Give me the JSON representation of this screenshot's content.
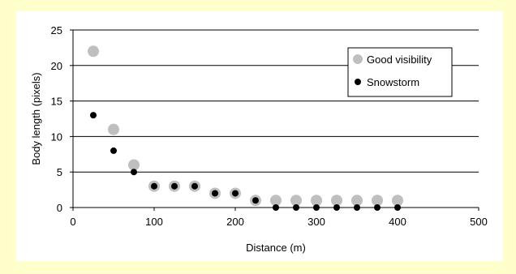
{
  "chart_data": {
    "type": "scatter",
    "xlabel": "Distance (m)",
    "ylabel": "Body length (pixels)",
    "xlim": [
      0,
      500
    ],
    "ylim": [
      0,
      25
    ],
    "xticks": [
      0,
      100,
      200,
      300,
      400,
      500
    ],
    "yticks": [
      0,
      5,
      10,
      15,
      20,
      25
    ],
    "grid": "horizontal",
    "legend_position": "top-right",
    "series": [
      {
        "name": "Good visibility",
        "color": "#bfbfbf",
        "marker": "large-circle",
        "points": [
          [
            25,
            22
          ],
          [
            50,
            11
          ],
          [
            75,
            6
          ],
          [
            100,
            3
          ],
          [
            125,
            3
          ],
          [
            150,
            3
          ],
          [
            175,
            2
          ],
          [
            200,
            2
          ],
          [
            225,
            1
          ],
          [
            250,
            1
          ],
          [
            275,
            1
          ],
          [
            300,
            1
          ],
          [
            325,
            1
          ],
          [
            350,
            1
          ],
          [
            375,
            1
          ],
          [
            400,
            1
          ]
        ]
      },
      {
        "name": "Snowstorm",
        "color": "#000000",
        "marker": "small-circle",
        "points": [
          [
            25,
            13
          ],
          [
            50,
            8
          ],
          [
            75,
            5
          ],
          [
            100,
            3
          ],
          [
            125,
            3
          ],
          [
            150,
            3
          ],
          [
            175,
            2
          ],
          [
            200,
            2
          ],
          [
            225,
            1
          ],
          [
            250,
            0
          ],
          [
            275,
            0
          ],
          [
            300,
            0
          ],
          [
            325,
            0
          ],
          [
            350,
            0
          ],
          [
            375,
            0
          ],
          [
            400,
            0
          ]
        ]
      }
    ]
  }
}
